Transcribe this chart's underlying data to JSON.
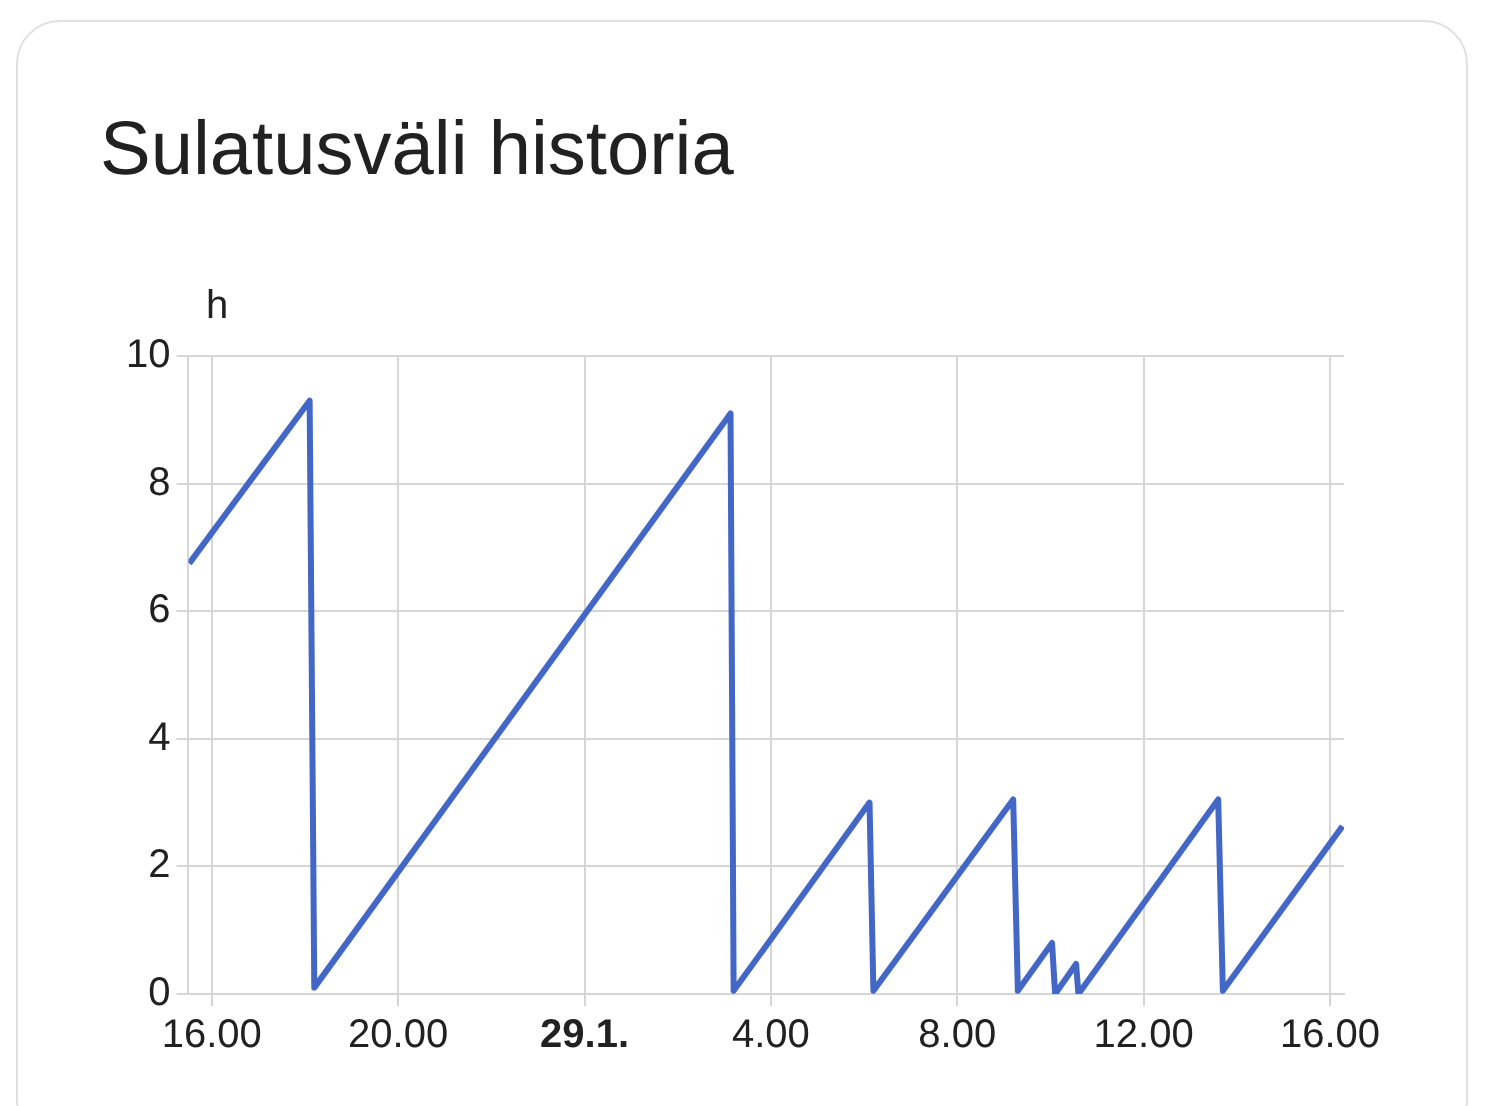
{
  "chart_data": {
    "type": "line",
    "title": "Sulatusväli historia",
    "ylabel": "h",
    "x": [
      "--01-28T15:31",
      "--01-28T18:06",
      "--01-28T18:12",
      "--01-29T03:08",
      "--01-29T03:12",
      "--01-29T06:07",
      "--01-29T06:12",
      "--01-29T09:12",
      "--01-29T09:18",
      "--01-29T10:02",
      "--01-29T10:06",
      "--01-29T10:33",
      "--01-29T10:36",
      "--01-29T13:36",
      "--01-29T13:42",
      "--01-29T16:16"
    ],
    "series": [
      {
        "color": "#4367c7",
        "values": [
          6.75,
          9.3,
          0.1,
          9.1,
          0.05,
          3.0,
          0.05,
          3.05,
          0.05,
          0.8,
          0,
          0.47,
          0,
          3.05,
          0.05,
          2.63
        ]
      }
    ],
    "xlim": [
      "--01-28T15:30",
      "--01-29T16:18"
    ],
    "xticks": [
      {
        "value": "--01-28T16:00",
        "label": "16.00"
      },
      {
        "value": "--01-28T20:00",
        "label": "20.00"
      },
      {
        "value": "--01-29T00:00",
        "label": "29.1."
      },
      {
        "value": "--01-29T04:00",
        "label": "4.00"
      },
      {
        "value": "--01-29T08:00",
        "label": "8.00"
      },
      {
        "value": "--01-29T12:00",
        "label": "12.00"
      },
      {
        "value": "--01-29T16:00",
        "label": "16.00"
      }
    ],
    "ylim": [
      0,
      10
    ],
    "yticks": [
      0,
      2,
      4,
      6,
      8,
      10
    ],
    "grid": true,
    "legend": false,
    "marker": "none",
    "line_style": "solid"
  }
}
